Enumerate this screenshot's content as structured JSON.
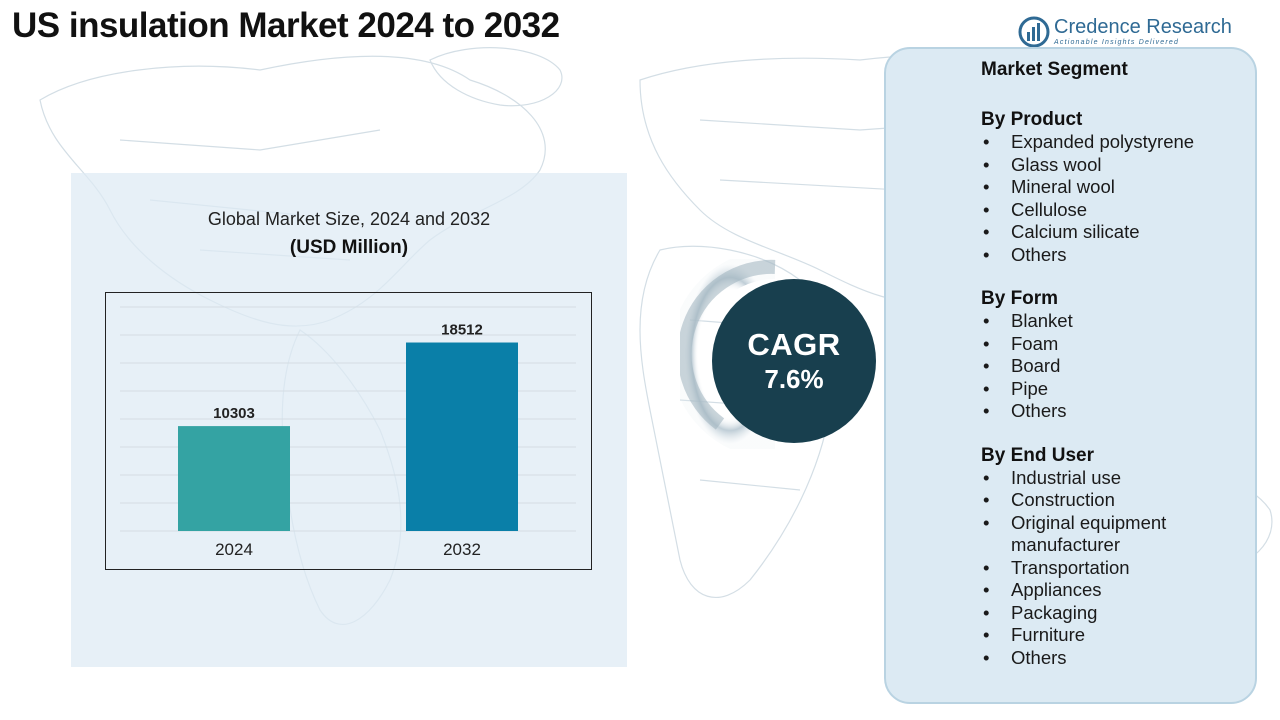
{
  "title": "US insulation Market 2024 to 2032",
  "brand": {
    "name": "Credence Research",
    "tagline": "Actionable Insights Delivered"
  },
  "chart": {
    "title": "Global Market Size, 2024 and 2032",
    "subtitle": "(USD Million)"
  },
  "chart_data": {
    "type": "bar",
    "categories": [
      "2024",
      "2032"
    ],
    "values": [
      10303,
      18512
    ],
    "colors": [
      "#34a3a3",
      "#0a7fa8"
    ],
    "title": "Global Market Size, 2024 and 2032",
    "subtitle": "(USD Million)",
    "xlabel": "",
    "ylabel": "",
    "ylim": [
      0,
      22000
    ],
    "grid": true,
    "legend": "none"
  },
  "cagr": {
    "label": "CAGR",
    "value": "7.6%"
  },
  "segments": {
    "heading": "Market Segment",
    "groups": [
      {
        "title": "By Product",
        "items": [
          "Expanded polystyrene",
          "Glass wool",
          "Mineral wool",
          "Cellulose",
          "Calcium silicate",
          "Others"
        ]
      },
      {
        "title": "By Form",
        "items": [
          "Blanket",
          "Foam",
          "Board",
          "Pipe",
          "Others"
        ]
      },
      {
        "title": "By End User",
        "items": [
          "Industrial use",
          "Construction",
          "Original equipment manufacturer",
          "Transportation",
          "Appliances",
          "Packaging",
          "Furniture",
          "Others"
        ]
      }
    ]
  },
  "colors": {
    "panel_bg": "#dceaf3",
    "cagr_circle": "#183f4e",
    "brand": "#2f6a94"
  }
}
